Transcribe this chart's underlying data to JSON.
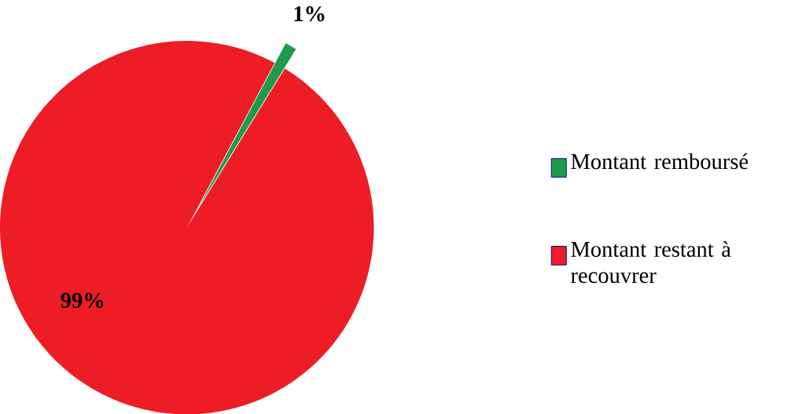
{
  "chart_data": {
    "type": "pie",
    "categories": [
      "Montant remboursé",
      "Montant restant  à recouvrer"
    ],
    "values": [
      1,
      99
    ],
    "colors": [
      "#1f9a4a",
      "#ee1c24"
    ],
    "value_labels": [
      "1%",
      "99%"
    ],
    "legend": "right"
  }
}
